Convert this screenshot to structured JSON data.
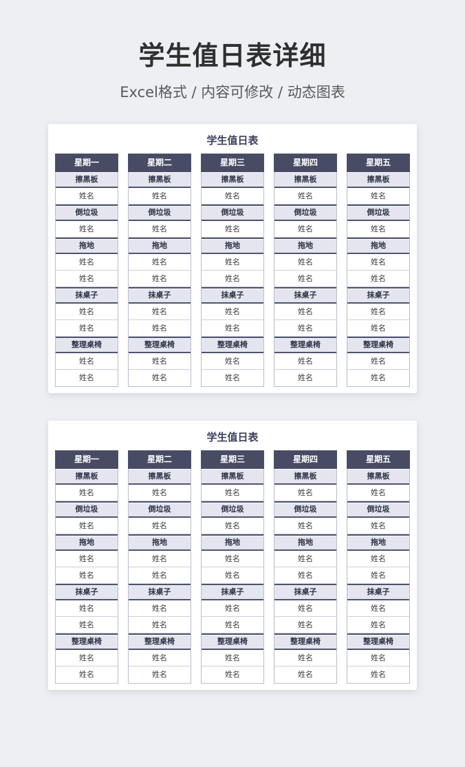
{
  "page": {
    "title": "学生值日表详细",
    "subtitle": "Excel格式 / 内容可修改 / 动态图表"
  },
  "duty_table": {
    "title": "学生值日表",
    "days": [
      "星期一",
      "星期二",
      "星期三",
      "星期四",
      "星期五"
    ],
    "rows": [
      {
        "type": "task",
        "label": "擦黑板"
      },
      {
        "type": "name",
        "label": "姓名"
      },
      {
        "type": "task",
        "label": "倒垃圾"
      },
      {
        "type": "name",
        "label": "姓名"
      },
      {
        "type": "task",
        "label": "拖地"
      },
      {
        "type": "name",
        "label": "姓名"
      },
      {
        "type": "name",
        "label": "姓名"
      },
      {
        "type": "task",
        "label": "抹桌子"
      },
      {
        "type": "name",
        "label": "姓名"
      },
      {
        "type": "name",
        "label": "姓名"
      },
      {
        "type": "task",
        "label": "整理桌椅"
      },
      {
        "type": "name",
        "label": "姓名"
      },
      {
        "type": "name",
        "label": "姓名"
      }
    ]
  },
  "colors": {
    "page_background": "#edeff3",
    "card_background": "#ffffff",
    "page_title_text": "#2f2f2f",
    "subtitle_text": "#595959",
    "table_title_text": "#3a3f5c",
    "day_header_background": "#474b63",
    "day_header_text": "#ffffff",
    "task_row_background": "#e4e5ee",
    "task_row_text": "#2e3248",
    "name_row_text": "#3d3d3d",
    "border_dark": "#4f546e",
    "border_light": "#b9bdcd"
  }
}
